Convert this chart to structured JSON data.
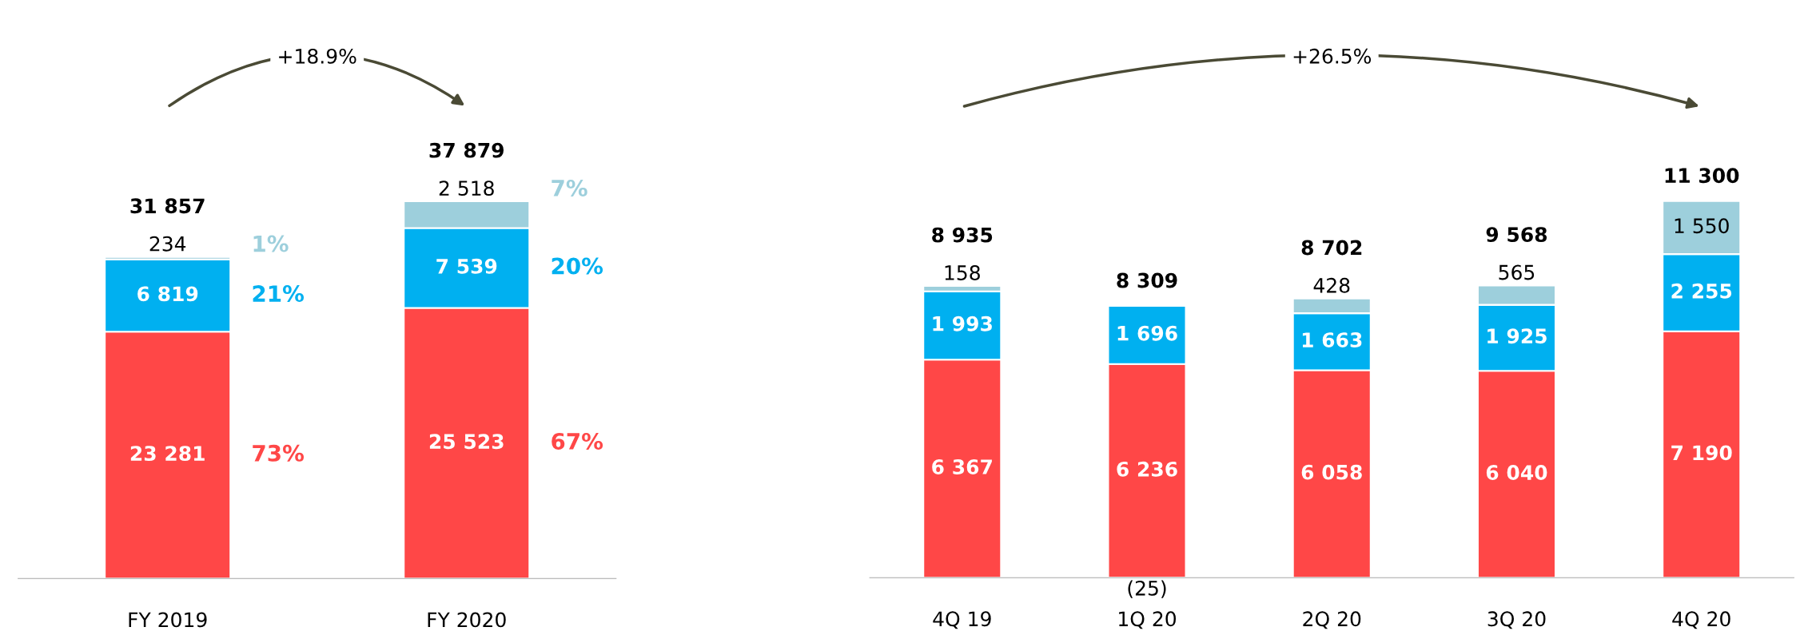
{
  "chart_data": [
    {
      "type": "bar",
      "stacked": true,
      "categories": [
        "FY 2019",
        "FY 2020"
      ],
      "series": [
        {
          "color": "#ff4747",
          "values": [
            23281,
            25523
          ],
          "value_labels": [
            "23 281",
            "25 523"
          ]
        },
        {
          "color": "#00b0f0",
          "values": [
            6819,
            7539
          ],
          "value_labels": [
            "6 819",
            "7 539"
          ]
        },
        {
          "color": "#9dcfdc",
          "values": [
            234,
            2518
          ],
          "value_labels": [
            "234",
            "2 518"
          ]
        }
      ],
      "annotations": [
        "+18.9%",
        "31 857",
        "37 879",
        "73%",
        "21%",
        "1%",
        "67%",
        "20%",
        "7%"
      ]
    },
    {
      "type": "bar",
      "stacked": true,
      "categories": [
        "4Q 19",
        "1Q 20",
        "2Q 20",
        "3Q 20",
        "4Q 20"
      ],
      "series": [
        {
          "color": "#ff4747",
          "values": [
            6367,
            6236,
            6058,
            6040,
            7190
          ],
          "value_labels": [
            "6 367",
            "6 236",
            "6 058",
            "6 040",
            "7 190"
          ]
        },
        {
          "color": "#00b0f0",
          "values": [
            1993,
            1696,
            1663,
            1925,
            2255
          ],
          "value_labels": [
            "1 993",
            "1 696",
            "1 663",
            "1 925",
            "2 255"
          ]
        },
        {
          "color": "#9dcfdc",
          "values": [
            158,
            -25,
            428,
            565,
            1550
          ],
          "value_labels": [
            "158",
            "(25)",
            "428",
            "565",
            "1 550"
          ]
        }
      ],
      "annotations": [
        "+26.5%",
        "8 935",
        "8 309",
        "8 702",
        "9 568",
        "11 300"
      ]
    }
  ]
}
